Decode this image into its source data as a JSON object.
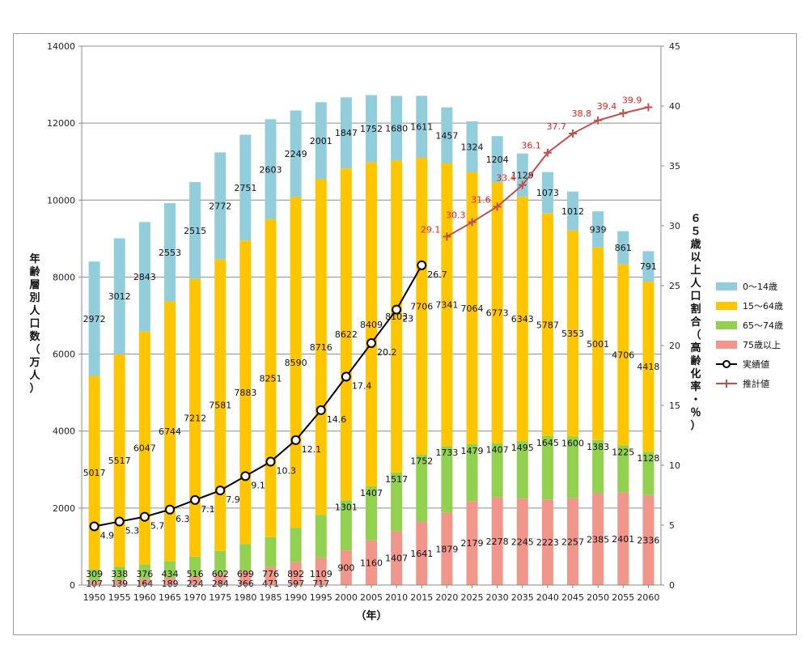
{
  "chart_data": {
    "type": "bar",
    "stacked": true,
    "categories": [
      "1950",
      "1955",
      "1960",
      "1965",
      "1970",
      "1975",
      "1980",
      "1985",
      "1990",
      "1995",
      "2000",
      "2005",
      "2010",
      "2015",
      "2020",
      "2025",
      "2030",
      "2035",
      "2040",
      "2045",
      "2050",
      "2055",
      "2060"
    ],
    "xlabel": "（年）",
    "ylabel_left": "年齢層別人口数（万人）",
    "ylabel_right": "６５歳以上人口割合（高齢化率・％）",
    "ylim_left": [
      0,
      14000
    ],
    "ylim_right": [
      0,
      45
    ],
    "yticks_left": [
      0,
      2000,
      4000,
      6000,
      8000,
      10000,
      12000,
      14000
    ],
    "yticks_right": [
      0,
      5,
      10,
      15,
      20,
      25,
      30,
      35,
      40,
      45
    ],
    "grid": true,
    "legend_position": "right",
    "series": [
      {
        "name": "75歳以上",
        "color": "#f0968a",
        "values": [
          107,
          139,
          164,
          189,
          224,
          284,
          366,
          471,
          597,
          717,
          900,
          1160,
          1407,
          1641,
          1879,
          2179,
          2278,
          2245,
          2223,
          2257,
          2385,
          2401,
          2336
        ]
      },
      {
        "name": "65〜74歳",
        "color": "#92d050",
        "values": [
          309,
          338,
          376,
          434,
          516,
          602,
          699,
          776,
          892,
          1109,
          1301,
          1407,
          1517,
          1752,
          1733,
          1479,
          1407,
          1495,
          1645,
          1600,
          1383,
          1225,
          1128
        ]
      },
      {
        "name": "15〜64歳",
        "color": "#ffc600",
        "values": [
          5017,
          5517,
          6047,
          6744,
          7212,
          7581,
          7883,
          8251,
          8590,
          8716,
          8622,
          8409,
          8103,
          7706,
          7341,
          7064,
          6773,
          6343,
          5787,
          5353,
          5001,
          4706,
          4418
        ]
      },
      {
        "name": "0〜14歳",
        "color": "#92cddc",
        "values": [
          2972,
          3012,
          2843,
          2553,
          2515,
          2772,
          2751,
          2603,
          2249,
          2001,
          1847,
          1752,
          1680,
          1611,
          1457,
          1324,
          1204,
          1129,
          1073,
          1012,
          939,
          861,
          791
        ]
      }
    ],
    "lines": [
      {
        "name": "実績値",
        "color": "#000000",
        "marker": "circle",
        "axis": "right",
        "x": [
          "1950",
          "1955",
          "1960",
          "1965",
          "1970",
          "1975",
          "1980",
          "1985",
          "1990",
          "1995",
          "2000",
          "2005",
          "2010",
          "2015"
        ],
        "values": [
          4.9,
          5.3,
          5.7,
          6.3,
          7.1,
          7.9,
          9.1,
          10.3,
          12.1,
          14.6,
          17.4,
          20.2,
          23,
          26.7
        ]
      },
      {
        "name": "推計値",
        "color": "#c0504d",
        "label_color": "#e8211d",
        "marker": "plus",
        "axis": "right",
        "x": [
          "2020",
          "2025",
          "2030",
          "2035",
          "2040",
          "2045",
          "2050",
          "2055",
          "2060"
        ],
        "values": [
          29.1,
          30.3,
          31.6,
          33.4,
          36.1,
          37.7,
          38.8,
          39.4,
          39.9
        ]
      }
    ]
  }
}
